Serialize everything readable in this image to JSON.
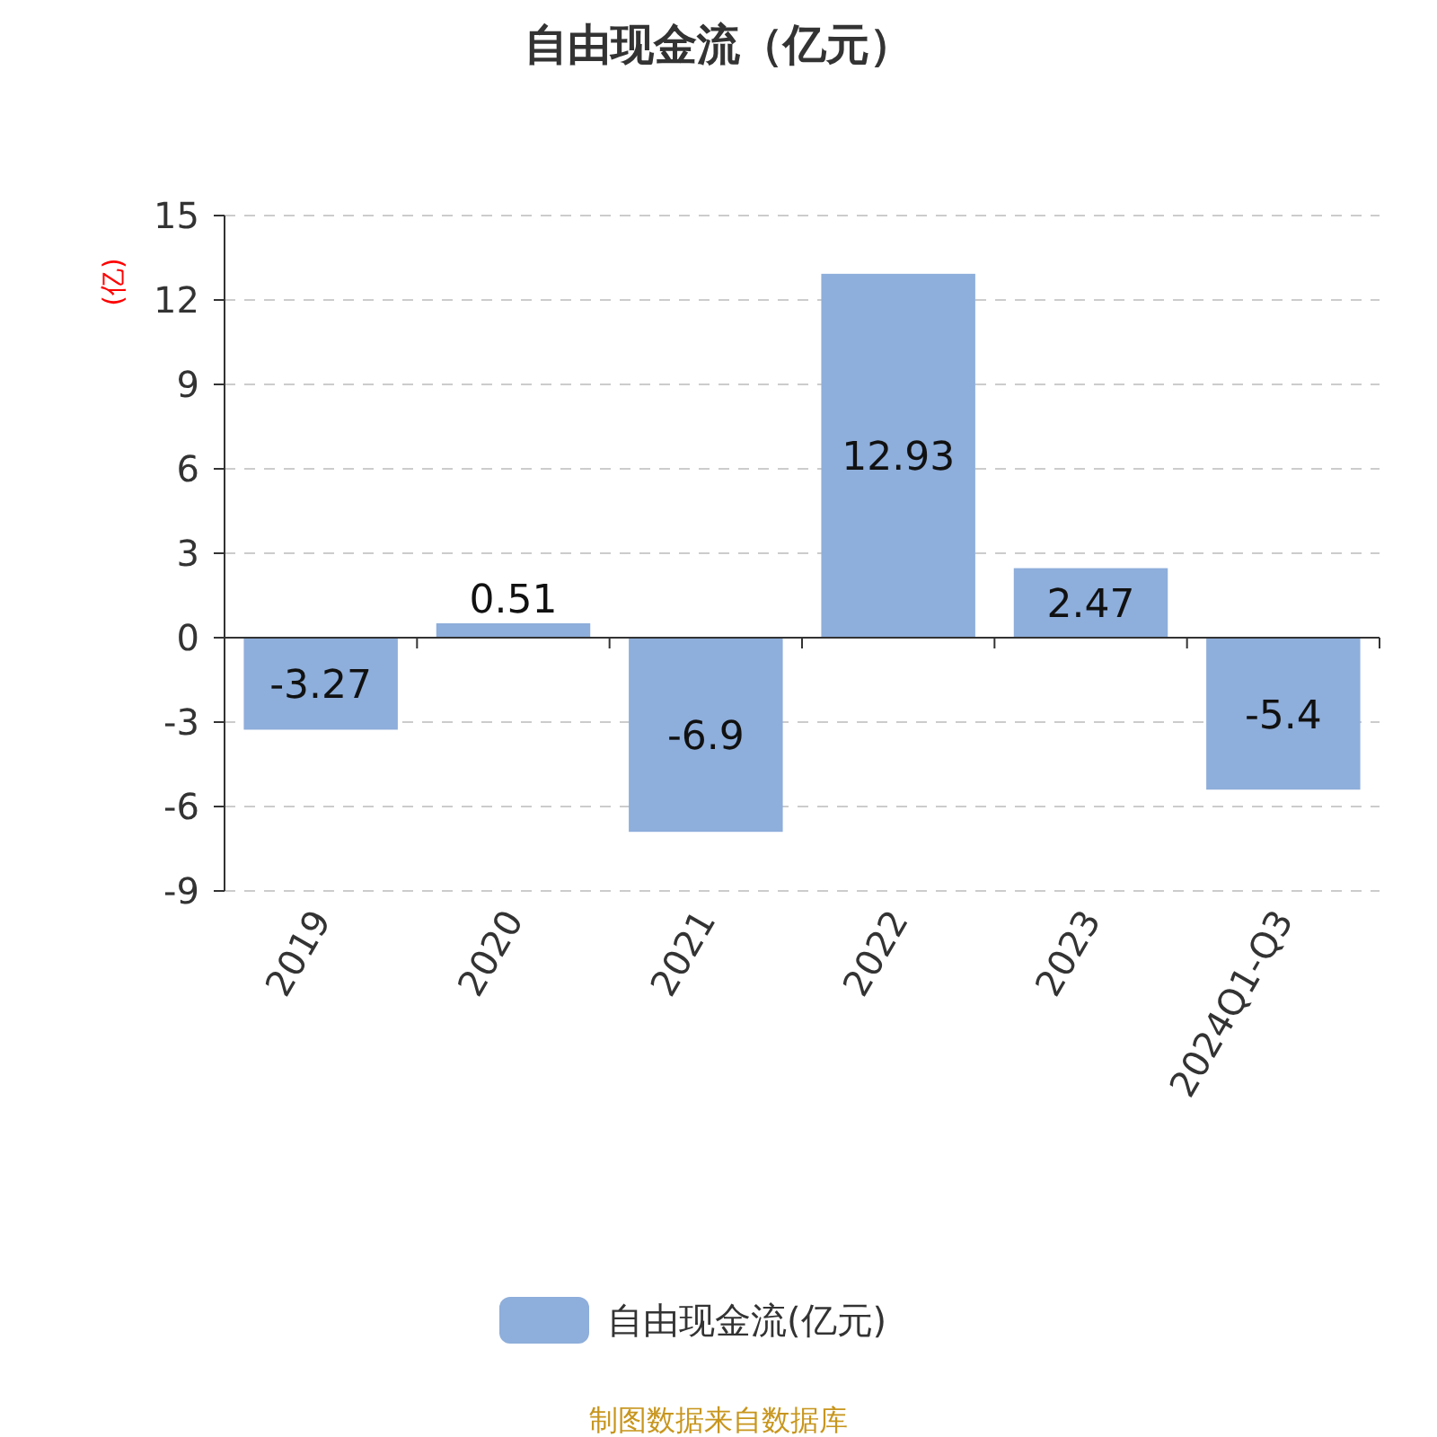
{
  "chart_data": {
    "type": "bar",
    "title": "自由现金流（亿元）",
    "ylabel": "(亿)",
    "categories": [
      "2019",
      "2020",
      "2021",
      "2022",
      "2023",
      "2024Q1-Q3"
    ],
    "series": [
      {
        "name": "自由现金流(亿元)",
        "color": "#8eaedb",
        "values": [
          -3.27,
          0.51,
          -6.9,
          12.93,
          2.47,
          -5.4
        ]
      }
    ],
    "ylim": [
      -9,
      15
    ],
    "yticks": [
      -9,
      -6,
      -3,
      0,
      3,
      6,
      9,
      12,
      15
    ],
    "grid": "y",
    "legend": "bottom",
    "data_labels": true,
    "annotations": [
      "制图数据来自数据库"
    ]
  }
}
